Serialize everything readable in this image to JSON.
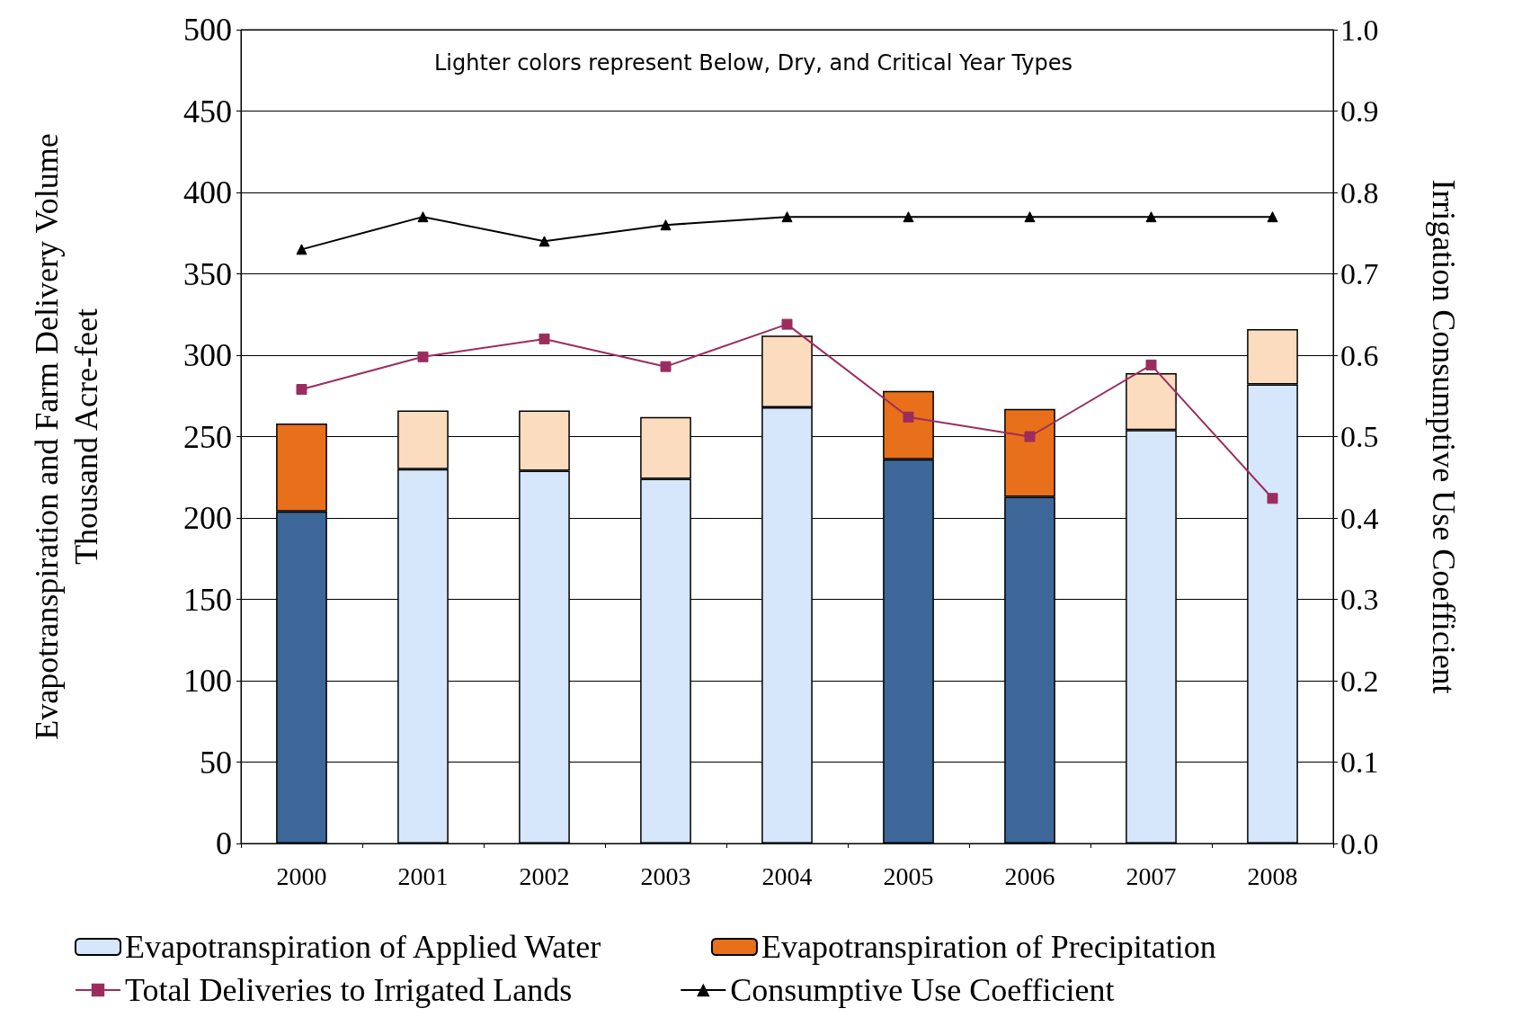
{
  "chart_data": {
    "type": "bar",
    "stacked": true,
    "categories": [
      "2000",
      "2001",
      "2002",
      "2003",
      "2004",
      "2005",
      "2006",
      "2007",
      "2008"
    ],
    "ylabel": "Evapotranspiration and Farm Delivery Volume\nThousand Acre-feet",
    "y2label": "Irrigation Consumptive Use Coefficient",
    "ylim": [
      0,
      500
    ],
    "yticks": [
      0,
      50,
      100,
      150,
      200,
      250,
      300,
      350,
      400,
      450,
      500
    ],
    "y2lim": [
      0,
      1
    ],
    "y2ticks": [
      {
        "value": 0,
        "label": "0.0"
      },
      0.1,
      0.2,
      0.3,
      0.4,
      0.5,
      0.6,
      0.7,
      0.8,
      0.9,
      {
        "value": 1,
        "label": "1.0"
      }
    ],
    "grid": "y",
    "legend": "bottom",
    "annotations": [
      "Lighter colors represent Below, Dry, and Critical Year Types"
    ],
    "series": [
      {
        "name": "Evapotranspiration of Applied Water",
        "color": "#d6e6fb",
        "colors": [
          "#3d6699",
          "#d6e6fb",
          "#d6e6fb",
          "#d6e6fb",
          "#d6e6fb",
          "#3d6699",
          "#3d6699",
          "#d6e6fb",
          "#d6e6fb"
        ],
        "values": [
          204,
          230,
          229,
          224,
          268,
          236,
          213,
          254,
          282
        ]
      },
      {
        "name": "Evapotranspiration of Precipitation",
        "color": "#e8701a",
        "colors": [
          "#e8701a",
          "#fbdcbf",
          "#fbdcbf",
          "#fbdcbf",
          "#fbdcbf",
          "#e8701a",
          "#e8701a",
          "#fbdcbf",
          "#fbdcbf"
        ],
        "values": [
          54,
          36,
          37,
          38,
          44,
          42,
          54,
          35,
          34
        ]
      },
      {
        "name": "Total Deliveries to Irrigated Lands",
        "type": "line",
        "color": "#9b2d5e",
        "marker": "square",
        "values": [
          279,
          299,
          310,
          293,
          319,
          262,
          250,
          294,
          212
        ]
      },
      {
        "name": "Consumptive Use Coefficient",
        "type": "line",
        "axis": "y2",
        "color": "#000000",
        "marker": "triangle",
        "values": [
          0.73,
          0.77,
          0.74,
          0.76,
          0.77,
          0.77,
          0.77,
          0.77,
          0.77
        ]
      }
    ]
  }
}
